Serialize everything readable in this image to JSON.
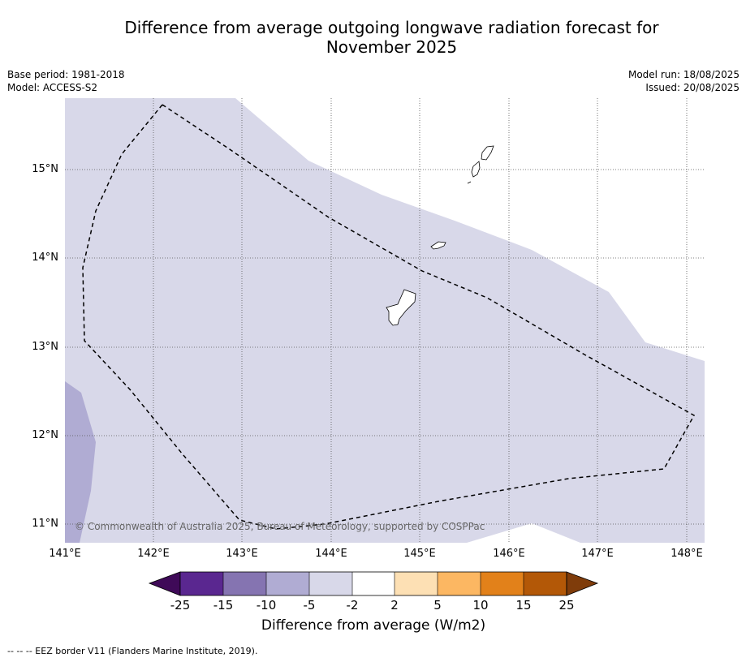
{
  "title_line1": "Difference from average outgoing longwave radiation forecast for",
  "title_line2": "November 2025",
  "meta": {
    "base_period": "Base period: 1981-2018",
    "model": "Model: ACCESS-S2",
    "model_run": "Model run: 18/08/2025",
    "issued": "Issued: 20/08/2025"
  },
  "map": {
    "lat_labels": [
      "15°N",
      "14°N",
      "13°N",
      "12°N",
      "11°N"
    ],
    "lon_labels": [
      "141°E",
      "142°E",
      "143°E",
      "144°E",
      "145°E",
      "146°E",
      "147°E",
      "148°E"
    ],
    "copyright": "© Commonwealth of Australia 2025, Bureau of Meteorology, supported by COSPPac",
    "colors": {
      "band_-5_-2": "#d8d8e9",
      "band_-10_-5": "#b0acd3",
      "band_-2_2": "#ffffff"
    }
  },
  "colorbar": {
    "title": "Difference from average (W/m2)",
    "ticks": [
      "-25",
      "-15",
      "-10",
      "-5",
      "-2",
      "2",
      "5",
      "10",
      "15",
      "25"
    ],
    "colors": [
      "#3f0a58",
      "#5a2790",
      "#8574b1",
      "#b0acd3",
      "#d8d8e9",
      "#ffffff",
      "#fde0b4",
      "#fcb762",
      "#e2811a",
      "#b35807",
      "#7f3c0a"
    ]
  },
  "footer": "--  --  -- EEZ border V11 (Flanders Marine Institute, 2019)."
}
